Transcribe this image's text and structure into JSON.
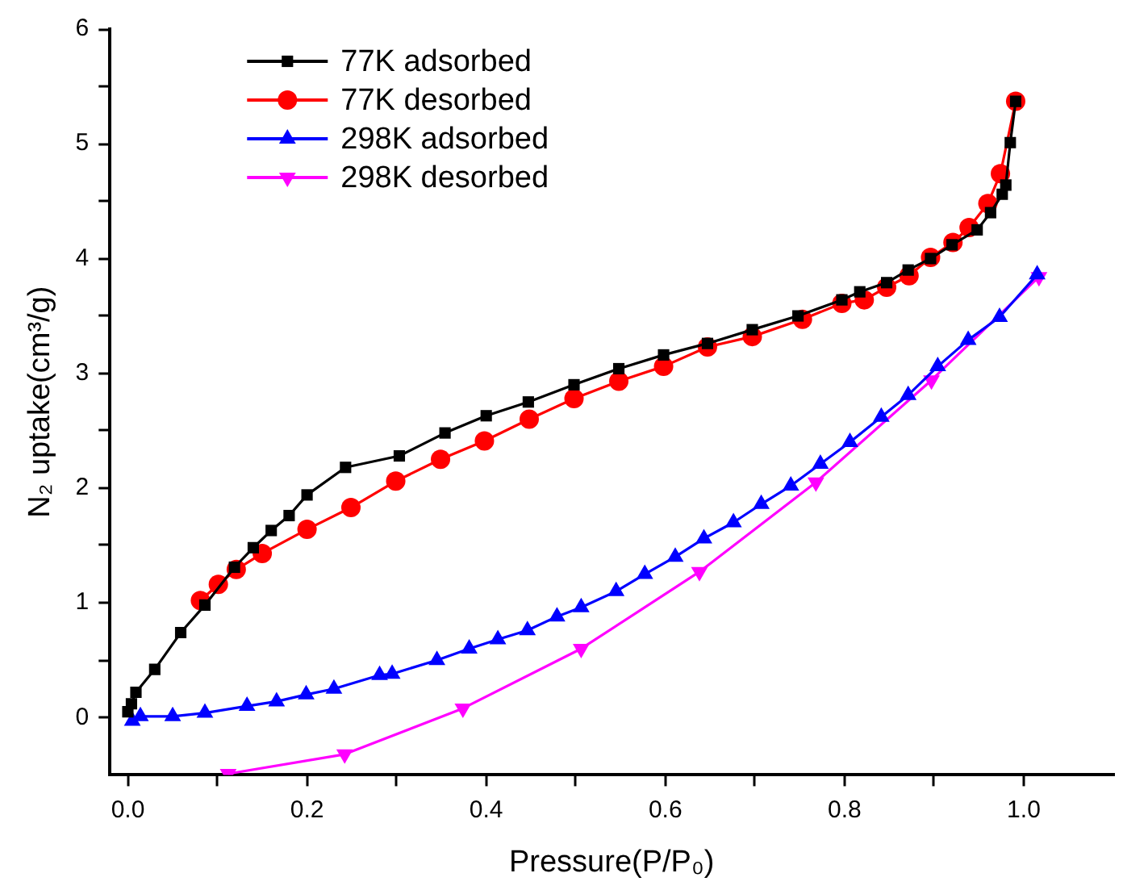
{
  "chart_data": {
    "type": "line",
    "xlabel": "Pressure(P/P₀)",
    "ylabel": "N₂ uptake(cm³/g)",
    "xlim": [
      -0.02,
      1.1
    ],
    "xticks": [
      {
        "value": 0,
        "label": "0.0"
      },
      {
        "value": 0.1,
        "label": null
      },
      {
        "value": 0.2,
        "label": "0.2"
      },
      {
        "value": 0.3,
        "label": null
      },
      {
        "value": 0.4,
        "label": "0.4"
      },
      {
        "value": 0.5,
        "label": null
      },
      {
        "value": 0.6,
        "label": "0.6"
      },
      {
        "value": 0.7,
        "label": null
      },
      {
        "value": 0.8,
        "label": "0.8"
      },
      {
        "value": 0.9,
        "label": null
      },
      {
        "value": 1,
        "label": "1.0"
      }
    ],
    "ylim": [
      -0.5,
      6
    ],
    "yticks": [
      0,
      {
        "value": 0.5,
        "label": null
      },
      1,
      {
        "value": 1.5,
        "label": null
      },
      2,
      {
        "value": 2.5,
        "label": null
      },
      3,
      {
        "value": 3.5,
        "label": null
      },
      4,
      {
        "value": 4.5,
        "label": null
      },
      5,
      {
        "value": 5.5,
        "label": null
      },
      6
    ],
    "grid": false,
    "legend": "top left",
    "line_style": "solid",
    "series": [
      {
        "name": "77K adsorbed",
        "color": "#000000",
        "marker": "square",
        "x": [
          0,
          0.004,
          0.009,
          0.03,
          0.059,
          0.086,
          0.119,
          0.14,
          0.16,
          0.18,
          0.2,
          0.243,
          0.303,
          0.354,
          0.4,
          0.447,
          0.498,
          0.548,
          0.598,
          0.647,
          0.697,
          0.748,
          0.797,
          0.817,
          0.847,
          0.871,
          0.896,
          0.92,
          0.948,
          0.963,
          0.976,
          0.98,
          0.985,
          0.991
        ],
        "values": [
          0.05,
          0.12,
          0.22,
          0.42,
          0.74,
          0.98,
          1.31,
          1.48,
          1.63,
          1.76,
          1.94,
          2.18,
          2.28,
          2.48,
          2.63,
          2.75,
          2.9,
          3.04,
          3.16,
          3.26,
          3.38,
          3.5,
          3.64,
          3.71,
          3.79,
          3.9,
          4.0,
          4.12,
          4.25,
          4.4,
          4.56,
          4.64,
          5.01,
          5.37
        ]
      },
      {
        "name": "77K desorbed",
        "color": "#ff0000",
        "marker": "circle",
        "x": [
          0.081,
          0.101,
          0.121,
          0.15,
          0.2,
          0.249,
          0.299,
          0.349,
          0.398,
          0.448,
          0.498,
          0.548,
          0.598,
          0.647,
          0.697,
          0.753,
          0.797,
          0.822,
          0.847,
          0.872,
          0.896,
          0.921,
          0.939,
          0.96,
          0.974,
          0.991
        ],
        "values": [
          1.02,
          1.16,
          1.29,
          1.43,
          1.64,
          1.83,
          2.06,
          2.25,
          2.41,
          2.6,
          2.78,
          2.93,
          3.06,
          3.23,
          3.32,
          3.47,
          3.61,
          3.64,
          3.75,
          3.85,
          4.01,
          4.14,
          4.27,
          4.48,
          4.74,
          5.37
        ]
      },
      {
        "name": "298K adsorbed",
        "color": "#0000ff",
        "marker": "triangle",
        "x": [
          0.005,
          0.014,
          0.05,
          0.086,
          0.133,
          0.166,
          0.199,
          0.23,
          0.281,
          0.295,
          0.345,
          0.381,
          0.413,
          0.446,
          0.479,
          0.506,
          0.545,
          0.577,
          0.611,
          0.643,
          0.676,
          0.707,
          0.74,
          0.773,
          0.806,
          0.841,
          0.871,
          0.904,
          0.938,
          0.973,
          1.015
        ],
        "values": [
          -0.03,
          0.01,
          0.01,
          0.04,
          0.1,
          0.14,
          0.2,
          0.25,
          0.37,
          0.38,
          0.5,
          0.6,
          0.68,
          0.76,
          0.88,
          0.96,
          1.1,
          1.25,
          1.4,
          1.56,
          1.7,
          1.86,
          2.02,
          2.21,
          2.4,
          2.62,
          2.81,
          3.06,
          3.29,
          3.49,
          3.86
        ]
      },
      {
        "name": "298K desorbed",
        "color": "#ff00ff",
        "marker": "triangle-down",
        "x": [
          0.112,
          0.242,
          0.374,
          0.506,
          0.638,
          0.768,
          0.897,
          1.017
        ],
        "values": [
          -0.49,
          -0.32,
          0.08,
          0.6,
          1.27,
          2.05,
          2.94,
          3.84
        ]
      }
    ]
  }
}
